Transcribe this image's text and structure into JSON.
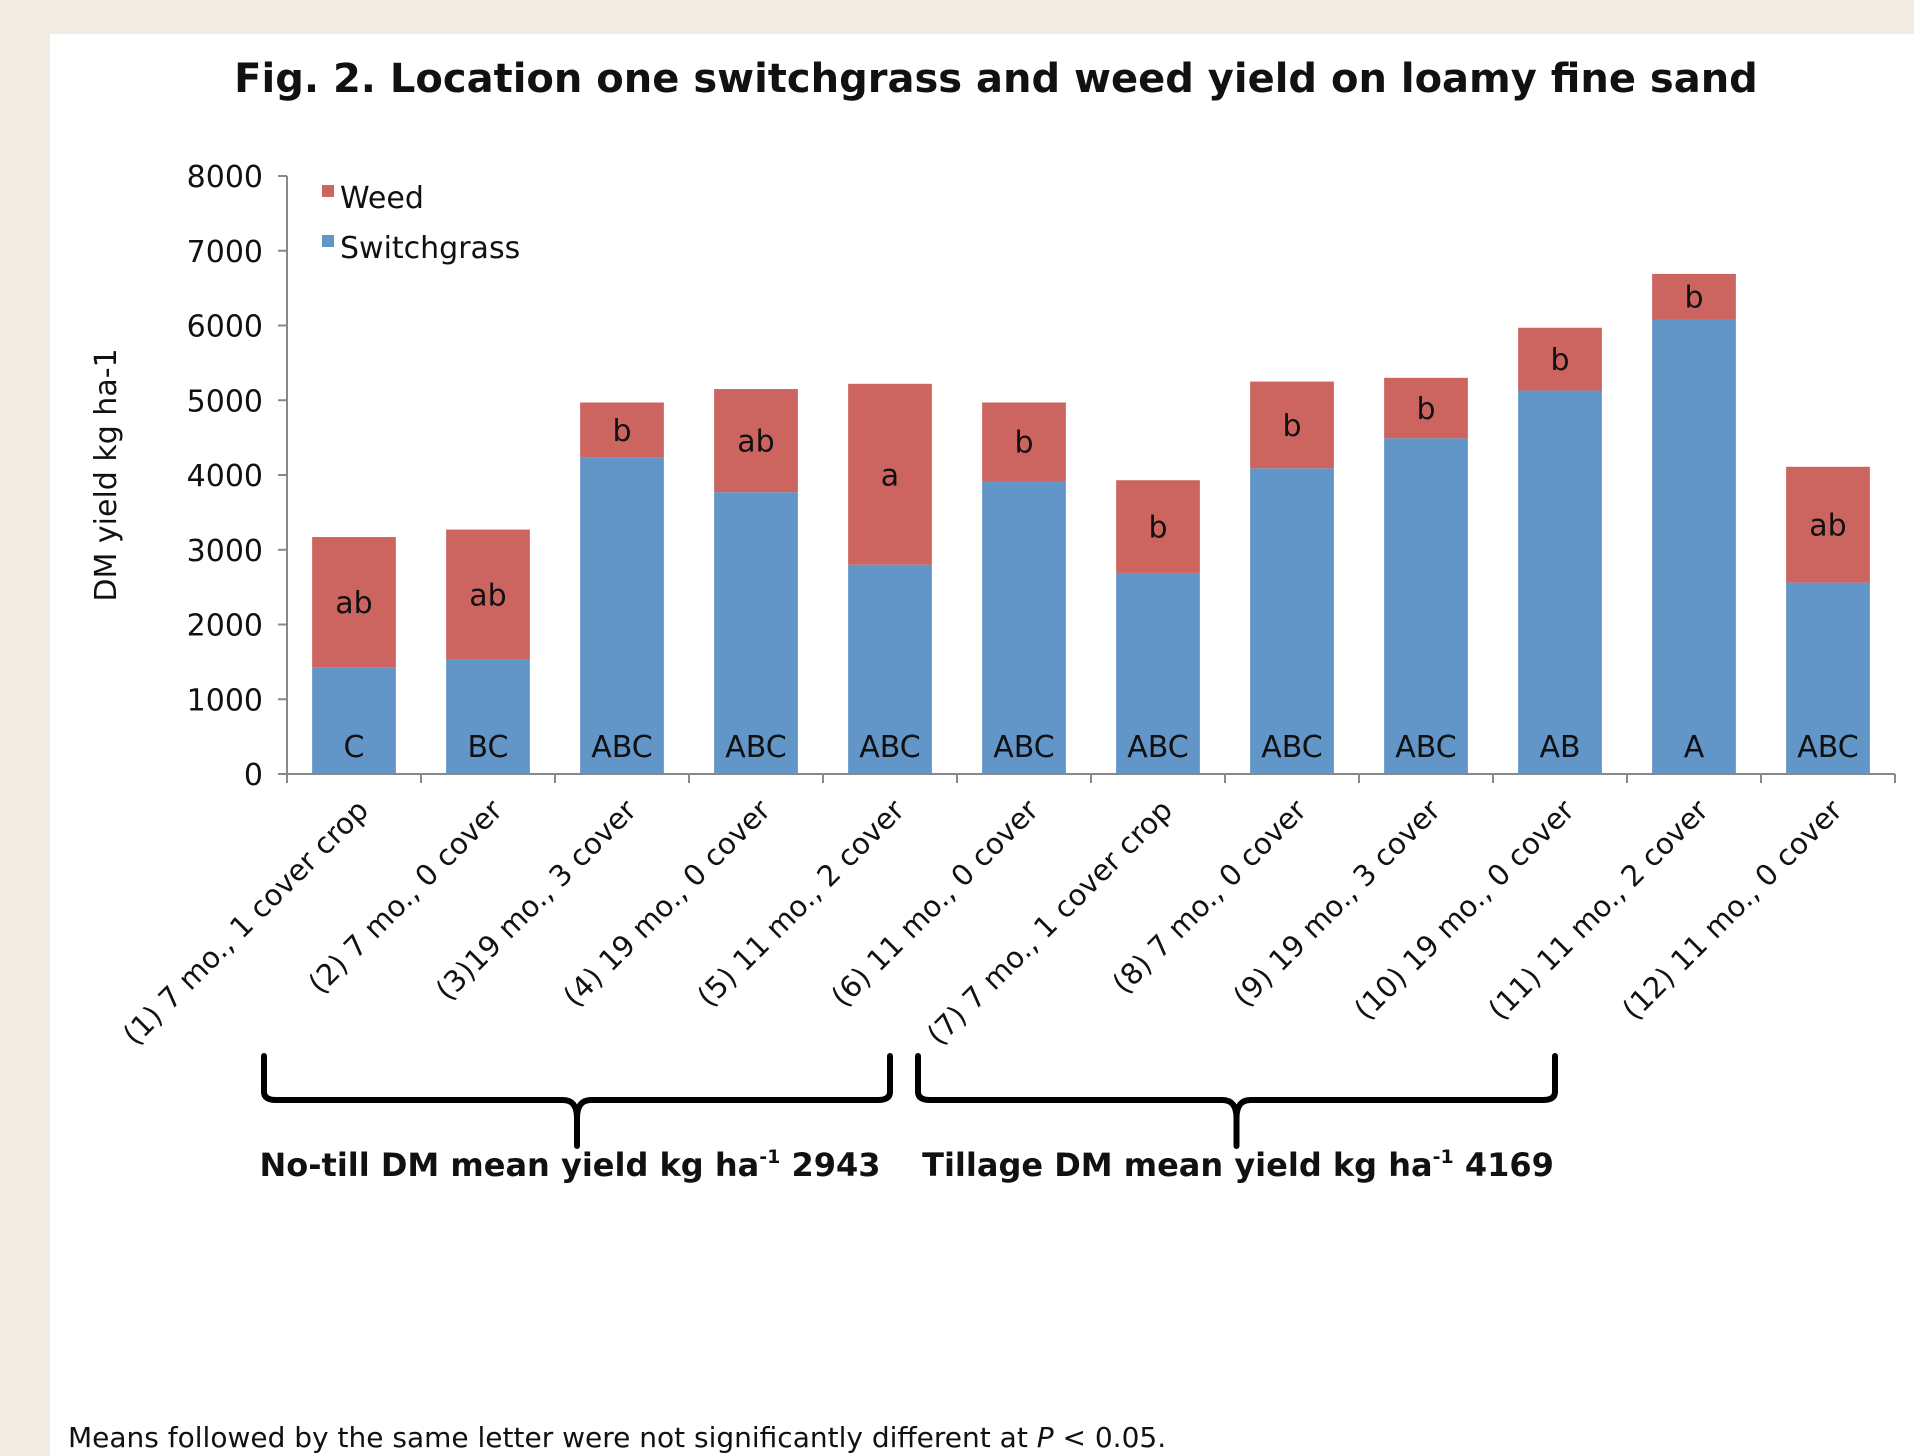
{
  "chart_data": {
    "type": "bar",
    "stacked": true,
    "title": "Fig. 2. Location one switchgrass and weed yield on loamy fine sand",
    "ylabel": "DM yield kg ha-1",
    "ylim": [
      0,
      8000
    ],
    "yticks": [
      "0",
      "1000",
      "2000",
      "3000",
      "4000",
      "5000",
      "6000",
      "7000",
      "8000"
    ],
    "legend_position": "top-left",
    "categories": [
      "(1) 7 mo., 1 cover crop",
      "(2) 7 mo., 0 cover",
      "(3)19 mo., 3 cover",
      "(4) 19 mo., 0 cover",
      "(5) 11 mo., 2 cover",
      "(6) 11 mo., 0 cover",
      "(7) 7 mo., 1 cover crop",
      "(8) 7 mo., 0 cover",
      "(9) 19 mo., 3 cover",
      "(10) 19 mo., 0 cover",
      "(11) 11 mo., 2 cover",
      "(12) 11 mo., 0 cover"
    ],
    "series": [
      {
        "name": "Switchgrass",
        "color": "#6296c8",
        "values": [
          1430,
          1530,
          4230,
          3770,
          2800,
          3920,
          2690,
          4090,
          4490,
          5130,
          6080,
          2560
        ],
        "labels": [
          "C",
          "BC",
          "ABC",
          "ABC",
          "ABC",
          "ABC",
          "ABC",
          "ABC",
          "ABC",
          "AB",
          "A",
          "ABC"
        ]
      },
      {
        "name": "Weed",
        "color": "#cc6560",
        "values": [
          1740,
          1740,
          740,
          1380,
          2420,
          1050,
          1240,
          1160,
          810,
          840,
          610,
          1550
        ],
        "labels": [
          "ab",
          "ab",
          "b",
          "ab",
          "a",
          "b",
          "b",
          "b",
          "b",
          "b",
          "b",
          "ab"
        ]
      }
    ],
    "groups": [
      {
        "label": "No-till DM mean yield kg ha",
        "sup": "-1",
        "value": "2943"
      },
      {
        "label": "Tillage DM mean yield kg ha",
        "sup": "-1",
        "value": "4169"
      }
    ]
  },
  "footnote": {
    "before": "Means followed by the same letter were not significantly different at ",
    "italic": "P",
    "after": " < 0.05."
  }
}
